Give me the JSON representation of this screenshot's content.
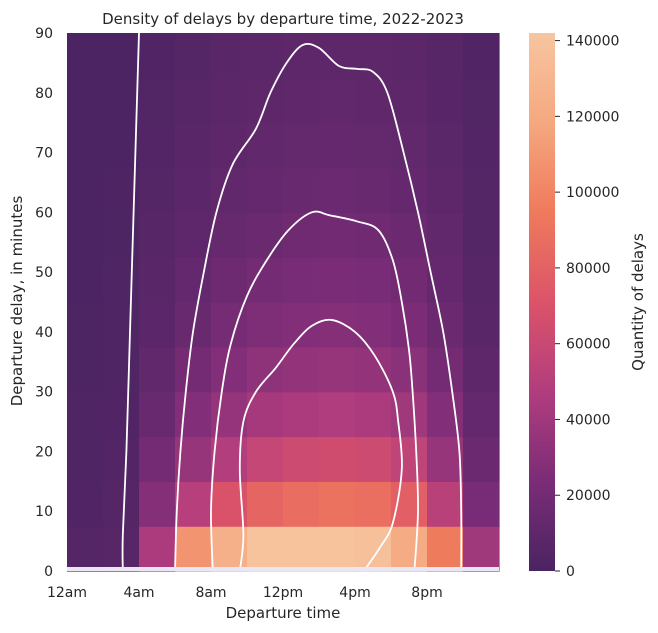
{
  "chart_data": {
    "type": "heatmap",
    "title": "Density of delays by departure time, 2022-2023",
    "xlabel": "Departure time",
    "ylabel": "Departure delay, in minutes",
    "x_ticks": [
      {
        "hour": 0,
        "label": "12am"
      },
      {
        "hour": 4,
        "label": "4am"
      },
      {
        "hour": 8,
        "label": "8am"
      },
      {
        "hour": 12,
        "label": "12pm"
      },
      {
        "hour": 16,
        "label": "4pm"
      },
      {
        "hour": 20,
        "label": "8pm"
      }
    ],
    "xlim": [
      0,
      24
    ],
    "y_ticks": [
      0,
      10,
      20,
      30,
      40,
      50,
      60,
      70,
      80,
      90
    ],
    "ylim": [
      0,
      90
    ],
    "x_bin_edges": [
      0,
      2,
      4,
      6,
      8,
      10,
      12,
      14,
      16,
      18,
      20,
      22,
      24
    ],
    "y_bin_edges": [
      0,
      7.5,
      15,
      22.5,
      30,
      37.5,
      45,
      52.5,
      60,
      67.5,
      75,
      82.5,
      90
    ],
    "values": [
      [
        5000,
        6000,
        45000,
        108000,
        125000,
        140000,
        140000,
        140000,
        138000,
        122000,
        95000,
        40000
      ],
      [
        3000,
        5000,
        28000,
        50000,
        70000,
        82000,
        87000,
        90000,
        88000,
        78000,
        52000,
        22000
      ],
      [
        2000,
        4000,
        20000,
        36000,
        48000,
        58000,
        62000,
        64000,
        62000,
        55000,
        36000,
        16000
      ],
      [
        2000,
        3000,
        15000,
        27000,
        35000,
        42000,
        45000,
        47000,
        45000,
        40000,
        27000,
        12000
      ],
      [
        1500,
        2500,
        11000,
        20000,
        27000,
        32000,
        34000,
        36000,
        34000,
        30000,
        20000,
        9000
      ],
      [
        1500,
        2000,
        8500,
        15000,
        21000,
        25000,
        27000,
        28000,
        27000,
        24000,
        16000,
        7000
      ],
      [
        1000,
        1800,
        7000,
        12000,
        17000,
        20000,
        22000,
        23000,
        22000,
        19000,
        13000,
        6000
      ],
      [
        1000,
        1500,
        6000,
        10000,
        14000,
        16000,
        18000,
        19000,
        18000,
        16000,
        11000,
        5000
      ],
      [
        1000,
        1400,
        5000,
        8500,
        11000,
        13000,
        15000,
        15500,
        15000,
        13000,
        9000,
        4500
      ],
      [
        800,
        1200,
        4000,
        7000,
        9500,
        11000,
        12500,
        13000,
        12500,
        11000,
        7500,
        4000
      ],
      [
        700,
        1000,
        3500,
        6000,
        8000,
        9500,
        10500,
        11000,
        10500,
        9000,
        6500,
        3500
      ],
      [
        600,
        900,
        3000,
        5000,
        7000,
        8000,
        9000,
        9500,
        9000,
        8000,
        5500,
        3000
      ]
    ],
    "contours": [
      [
        [
          3.1,
          0
        ],
        [
          3.1,
          6
        ],
        [
          3.3,
          20
        ],
        [
          3.5,
          40
        ],
        [
          3.7,
          60
        ],
        [
          3.9,
          80
        ],
        [
          4.0,
          90
        ]
      ],
      [
        [
          6.0,
          0
        ],
        [
          6.1,
          10
        ],
        [
          6.3,
          20
        ],
        [
          6.6,
          30
        ],
        [
          7.0,
          40
        ],
        [
          7.6,
          50
        ],
        [
          8.3,
          60
        ],
        [
          9.2,
          68
        ],
        [
          10.5,
          74
        ],
        [
          11.3,
          80
        ],
        [
          12.2,
          85
        ],
        [
          13.1,
          88
        ],
        [
          14.0,
          87.5
        ],
        [
          15.1,
          84.5
        ],
        [
          16.1,
          84
        ],
        [
          17.0,
          83.5
        ],
        [
          17.8,
          80
        ],
        [
          18.7,
          70
        ],
        [
          19.5,
          60
        ],
        [
          20.2,
          50
        ],
        [
          20.9,
          40
        ],
        [
          21.4,
          30
        ],
        [
          21.8,
          20
        ],
        [
          21.9,
          10
        ],
        [
          21.9,
          0
        ]
      ],
      [
        [
          8.1,
          0
        ],
        [
          8.0,
          10
        ],
        [
          8.2,
          20
        ],
        [
          8.6,
          30
        ],
        [
          9.1,
          38
        ],
        [
          10.0,
          46
        ],
        [
          11.1,
          52
        ],
        [
          12.3,
          57
        ],
        [
          13.6,
          60
        ],
        [
          14.6,
          59.5
        ],
        [
          16.1,
          58.5
        ],
        [
          17.3,
          57
        ],
        [
          18.1,
          52
        ],
        [
          18.6,
          45
        ],
        [
          19.0,
          37
        ],
        [
          19.2,
          30
        ],
        [
          19.4,
          20
        ],
        [
          19.5,
          10
        ],
        [
          19.3,
          0
        ]
      ],
      [
        [
          9.6,
          0
        ],
        [
          9.8,
          6
        ],
        [
          9.6,
          17
        ],
        [
          9.8,
          25
        ],
        [
          10.5,
          30
        ],
        [
          11.6,
          34
        ],
        [
          12.6,
          38
        ],
        [
          13.6,
          41
        ],
        [
          14.7,
          42
        ],
        [
          16.0,
          40
        ],
        [
          17.1,
          36
        ],
        [
          18.1,
          30
        ],
        [
          18.4,
          25
        ],
        [
          18.6,
          17
        ],
        [
          18.1,
          8
        ],
        [
          17.4,
          4
        ],
        [
          16.5,
          0
        ]
      ]
    ],
    "colorbar": {
      "label": "Quantity of delays",
      "min": 0,
      "max": 142000,
      "ticks": [
        0,
        20000,
        40000,
        60000,
        80000,
        100000,
        120000,
        140000
      ],
      "colors": [
        "#4b2462",
        "#7b2c77",
        "#b13d7e",
        "#dc5369",
        "#ef7a5c",
        "#f5a880",
        "#f6c5a0"
      ]
    },
    "grid": false,
    "legend": "colorbar-right"
  }
}
